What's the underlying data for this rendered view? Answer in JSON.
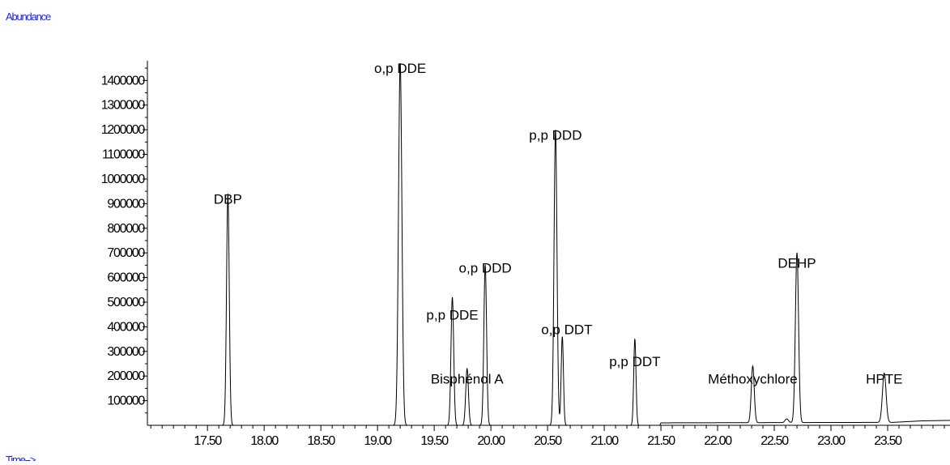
{
  "chart_data": {
    "type": "line",
    "ylabel": "Abundance",
    "xlabel": "Time-->",
    "xlim": [
      16.97,
      24.05
    ],
    "ylim": [
      0,
      1480000
    ],
    "x_ticks": [
      "17.50",
      "18.00",
      "18.50",
      "19.00",
      "19.50",
      "20.00",
      "20.50",
      "21.00",
      "21.50",
      "22.00",
      "22.50",
      "23.00",
      "23.50"
    ],
    "y_ticks": [
      "100000",
      "200000",
      "300000",
      "400000",
      "500000",
      "600000",
      "700000",
      "800000",
      "900000",
      "1000000",
      "1100000",
      "1200000",
      "1300000",
      "1400000"
    ],
    "series": [
      {
        "baseline": [
          {
            "x": 16.97,
            "y": 0
          },
          {
            "x": 21.49,
            "y": 0
          },
          {
            "x": 21.5,
            "y": 10000
          },
          {
            "x": 23.55,
            "y": 12000
          },
          {
            "x": 23.8,
            "y": 18000
          },
          {
            "x": 24.05,
            "y": 20000
          }
        ],
        "peaks": [
          {
            "rt": 17.68,
            "height": 940000,
            "width": 0.012
          },
          {
            "rt": 19.2,
            "height": 1470000,
            "width": 0.015
          },
          {
            "rt": 19.66,
            "height": 520000,
            "width": 0.012
          },
          {
            "rt": 19.79,
            "height": 230000,
            "width": 0.012
          },
          {
            "rt": 19.95,
            "height": 650000,
            "width": 0.012
          },
          {
            "rt": 20.57,
            "height": 1200000,
            "width": 0.013
          },
          {
            "rt": 20.63,
            "height": 360000,
            "width": 0.01
          },
          {
            "rt": 21.27,
            "height": 350000,
            "width": 0.01
          },
          {
            "rt": 22.31,
            "height": 230000,
            "width": 0.013
          },
          {
            "rt": 22.61,
            "height": 15000,
            "width": 0.015
          },
          {
            "rt": 22.7,
            "height": 690000,
            "width": 0.014
          },
          {
            "rt": 23.47,
            "height": 200000,
            "width": 0.016
          }
        ]
      }
    ],
    "annotations": [
      {
        "text": "DBP",
        "x": 17.68,
        "y": 900000
      },
      {
        "text": "o,p DDE",
        "x": 19.2,
        "y": 1430000
      },
      {
        "text": "p,p DDE",
        "x": 19.66,
        "y": 430000
      },
      {
        "text": "Bisphénol A",
        "x": 19.79,
        "y": 170000
      },
      {
        "text": "o,p DDD",
        "x": 19.95,
        "y": 620000
      },
      {
        "text": "p,p DDD",
        "x": 20.57,
        "y": 1160000
      },
      {
        "text": "o,p DDT",
        "x": 20.67,
        "y": 370000
      },
      {
        "text": "p,p DDT",
        "x": 21.27,
        "y": 240000
      },
      {
        "text": "Méthoxychlore",
        "x": 22.31,
        "y": 170000
      },
      {
        "text": "DEHP",
        "x": 22.7,
        "y": 640000
      },
      {
        "text": "HPTE",
        "x": 23.47,
        "y": 170000
      }
    ]
  }
}
